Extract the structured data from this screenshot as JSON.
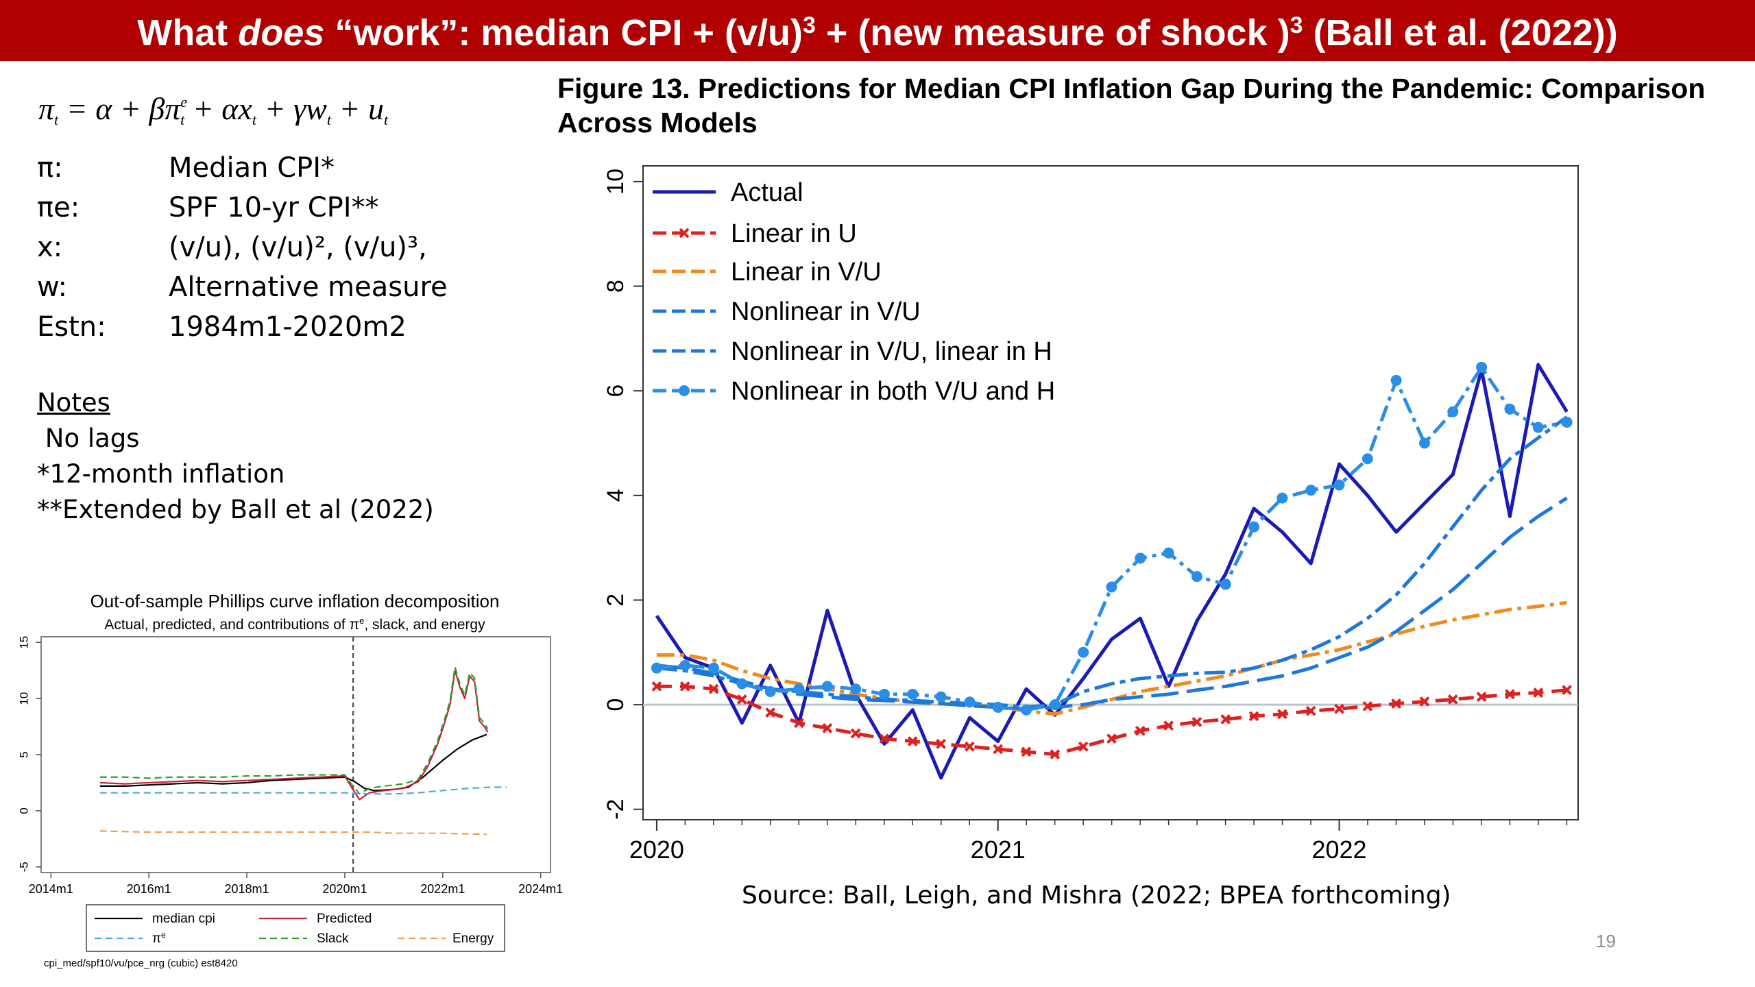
{
  "slide": {
    "title_parts": {
      "a": "What ",
      "b": "does",
      "c": " “work”: median CPI + (v/u)",
      "d": "3",
      "e": " + (new measure of shock )",
      "f": "3",
      "g": " (Ball et al. (2022))"
    },
    "page_number": "19"
  },
  "equation": {
    "lhs": "π",
    "lhs_sub": "t",
    "rhs1": " = α + βπ",
    "rhs1_sup": "e",
    "rhs1_sub": "t",
    "rhs2": " + αx",
    "rhs2_sub": "t",
    "rhs3": " + γw",
    "rhs3_sub": "t",
    "rhs4": " + u",
    "rhs4_sub": "t"
  },
  "definitions": [
    {
      "symbol": "π:",
      "value": "Median CPI*"
    },
    {
      "symbol": "πe:",
      "value": "SPF 10-yr CPI**"
    },
    {
      "symbol": "x:",
      "value": "(v/u), (v/u)², (v/u)³,"
    },
    {
      "symbol": "w:",
      "value": "Alternative measure"
    },
    {
      "symbol": "Estn:",
      "value": " 1984m1-2020m2"
    }
  ],
  "notes": {
    "heading": "Notes",
    "lines": [
      " No lags",
      "*12-month inflation",
      "**Extended by Ball et al (2022)"
    ]
  },
  "source": "Source: Ball, Leigh, and Mishra (2022; BPEA forthcoming)",
  "colors": {
    "title_bg": "#b00000",
    "actual": "#1a1ab4",
    "linear_u": "#e02020",
    "linear_vu": "#f08a1e",
    "nonlinear": "#1e78dc",
    "zero_line": "#b8c4cc"
  },
  "chart_data": [
    {
      "type": "line",
      "title": "Figure 13. Predictions for Median CPI Inflation Gap During the Pandemic: Comparison Across Models",
      "xlabel": "",
      "ylabel": "",
      "x_ticks": [
        {
          "label": "2020",
          "value": 2020.0
        },
        {
          "label": "2021",
          "value": 2021.0
        },
        {
          "label": "2022",
          "value": 2022.0
        }
      ],
      "xlim": [
        2019.96,
        2022.7
      ],
      "y_ticks": [
        -2,
        0,
        2,
        4,
        6,
        8,
        10
      ],
      "ylim": [
        -2.2,
        10.3
      ],
      "legend_position": "top-left",
      "x": [
        2020.0,
        2020.083,
        2020.167,
        2020.25,
        2020.333,
        2020.417,
        2020.5,
        2020.583,
        2020.667,
        2020.75,
        2020.833,
        2020.917,
        2021.0,
        2021.083,
        2021.167,
        2021.25,
        2021.333,
        2021.417,
        2021.5,
        2021.583,
        2021.667,
        2021.75,
        2021.833,
        2021.917,
        2022.0,
        2022.083,
        2022.167,
        2022.25,
        2022.333,
        2022.417,
        2022.5,
        2022.583,
        2022.667
      ],
      "series": [
        {
          "name": "Actual",
          "style": "solid",
          "color": "#1a1ab4",
          "values": [
            1.7,
            0.9,
            0.7,
            -0.35,
            0.75,
            -0.35,
            1.8,
            0.2,
            -0.75,
            -0.1,
            -1.4,
            -0.25,
            -0.7,
            0.3,
            -0.2,
            0.5,
            1.25,
            1.65,
            0.35,
            1.6,
            2.5,
            3.75,
            3.3,
            2.7,
            4.6,
            4.0,
            3.3,
            3.85,
            4.4,
            6.4,
            3.6,
            6.5,
            5.6
          ]
        },
        {
          "name": "Linear in U",
          "style": "dash-x",
          "color": "#e02020",
          "values": [
            0.35,
            0.35,
            0.3,
            0.1,
            -0.15,
            -0.35,
            -0.45,
            -0.55,
            -0.65,
            -0.7,
            -0.75,
            -0.8,
            -0.85,
            -0.9,
            -0.95,
            -0.8,
            -0.65,
            -0.5,
            -0.4,
            -0.33,
            -0.28,
            -0.22,
            -0.18,
            -0.12,
            -0.08,
            -0.03,
            0.02,
            0.06,
            0.1,
            0.15,
            0.2,
            0.23,
            0.28
          ]
        },
        {
          "name": "Linear in V/U",
          "style": "dash-dot",
          "color": "#f08a1e",
          "values": [
            0.95,
            0.95,
            0.85,
            0.65,
            0.5,
            0.4,
            0.3,
            0.2,
            0.12,
            0.05,
            0.02,
            0.0,
            -0.05,
            -0.12,
            -0.18,
            -0.05,
            0.1,
            0.25,
            0.35,
            0.45,
            0.55,
            0.7,
            0.85,
            0.95,
            1.05,
            1.2,
            1.35,
            1.5,
            1.62,
            1.72,
            1.82,
            1.88,
            1.95
          ]
        },
        {
          "name": "Nonlinear in V/U",
          "style": "long-dash",
          "color": "#1e78dc",
          "values": [
            0.75,
            0.7,
            0.6,
            0.45,
            0.3,
            0.2,
            0.15,
            0.1,
            0.08,
            0.05,
            0.02,
            -0.02,
            -0.05,
            -0.08,
            -0.05,
            0.0,
            0.1,
            0.15,
            0.2,
            0.28,
            0.35,
            0.45,
            0.55,
            0.7,
            0.9,
            1.1,
            1.4,
            1.8,
            2.2,
            2.7,
            3.2,
            3.6,
            3.95
          ]
        },
        {
          "name": "Nonlinear in V/U, linear in H",
          "style": "dash-dot2",
          "color": "#1e78dc",
          "values": [
            0.7,
            0.65,
            0.55,
            0.4,
            0.3,
            0.25,
            0.2,
            0.15,
            0.1,
            0.08,
            0.05,
            0.02,
            0.0,
            -0.05,
            0.0,
            0.25,
            0.4,
            0.5,
            0.55,
            0.6,
            0.62,
            0.7,
            0.85,
            1.05,
            1.3,
            1.65,
            2.1,
            2.7,
            3.4,
            4.1,
            4.7,
            5.1,
            5.5
          ]
        },
        {
          "name": "Nonlinear in both V/U and H",
          "style": "dash-dot-marker",
          "color": "#2a8ee6",
          "values": [
            0.7,
            0.75,
            0.7,
            0.4,
            0.25,
            0.3,
            0.35,
            0.3,
            0.2,
            0.2,
            0.15,
            0.05,
            -0.05,
            -0.1,
            0.0,
            1.0,
            2.25,
            2.8,
            2.9,
            2.45,
            2.3,
            3.4,
            3.95,
            4.1,
            4.2,
            4.7,
            6.2,
            5.0,
            5.6,
            6.45,
            5.65,
            5.3,
            5.4
          ]
        }
      ]
    },
    {
      "type": "line",
      "title": "Out-of-sample Phillips curve inflation decomposition",
      "subtitle_parts": {
        "a": "Actual, predicted, and contributions of π",
        "b": "e",
        "c": ", slack, and energy"
      },
      "x_ticks": [
        {
          "label": "2014m1",
          "value": 2014.0
        },
        {
          "label": "2016m1",
          "value": 2016.0
        },
        {
          "label": "2018m1",
          "value": 2018.0
        },
        {
          "label": "2020m1",
          "value": 2020.0
        },
        {
          "label": "2022m1",
          "value": 2022.0
        },
        {
          "label": "2024m1",
          "value": 2024.0
        }
      ],
      "xlim": [
        2013.8,
        2024.2
      ],
      "y_ticks": [
        -5,
        0,
        5,
        10,
        15
      ],
      "ylim": [
        -5.5,
        15.5
      ],
      "vline": 2020.17,
      "legend_position": "bottom",
      "legend_entries": [
        {
          "label": "median cpi",
          "color": "#000000",
          "dash": "solid"
        },
        {
          "label": "Predicted",
          "color": "#c81e3c",
          "dash": "solid"
        },
        {
          "label": "π",
          "label_sup": "e",
          "color": "#4aa8e0",
          "dash": "dashed"
        },
        {
          "label": "Slack",
          "color": "#2ca02c",
          "dash": "dashed"
        },
        {
          "label": "Energy",
          "color": "#f0a050",
          "dash": "dashed"
        }
      ],
      "footnote": "cpi_med/spf10/vu/pce_nrg (cubic) est8420",
      "series": [
        {
          "name": "median cpi",
          "color": "#000000",
          "dash": "solid",
          "x": [
            2015.0,
            2015.5,
            2016.0,
            2016.5,
            2017.0,
            2017.5,
            2018.0,
            2018.5,
            2019.0,
            2019.5,
            2020.0,
            2020.2,
            2020.4,
            2020.6,
            2021.0,
            2021.3,
            2021.6,
            2022.0,
            2022.3,
            2022.6,
            2022.9
          ],
          "values": [
            2.2,
            2.2,
            2.3,
            2.4,
            2.5,
            2.4,
            2.5,
            2.7,
            2.8,
            2.9,
            3.0,
            2.6,
            2.0,
            1.8,
            1.9,
            2.1,
            3.0,
            4.5,
            5.5,
            6.3,
            6.8
          ]
        },
        {
          "name": "Predicted",
          "color": "#c81e3c",
          "dash": "solid",
          "x": [
            2015.0,
            2015.5,
            2016.0,
            2016.5,
            2017.0,
            2017.5,
            2018.0,
            2018.5,
            2019.0,
            2019.5,
            2020.0,
            2020.15,
            2020.3,
            2020.5,
            2020.8,
            2021.2,
            2021.5,
            2021.7,
            2021.9,
            2022.05,
            2022.15,
            2022.25,
            2022.35,
            2022.45,
            2022.55,
            2022.65,
            2022.75,
            2022.85,
            2022.92
          ],
          "values": [
            2.5,
            2.4,
            2.5,
            2.6,
            2.7,
            2.6,
            2.7,
            2.8,
            2.9,
            3.0,
            3.1,
            2.0,
            1.0,
            1.6,
            1.8,
            2.0,
            2.6,
            4.0,
            6.0,
            8.0,
            9.5,
            12.5,
            11.0,
            10.0,
            12.0,
            11.5,
            8.0,
            7.5,
            7.0
          ]
        },
        {
          "name": "Slack",
          "color": "#2ca02c",
          "dash": "dashed",
          "x": [
            2015.0,
            2015.5,
            2016.0,
            2016.5,
            2017.0,
            2017.5,
            2018.0,
            2018.5,
            2019.0,
            2019.5,
            2020.0,
            2020.15,
            2020.3,
            2020.5,
            2020.8,
            2021.2,
            2021.5,
            2021.7,
            2021.9,
            2022.05,
            2022.15,
            2022.25,
            2022.35,
            2022.45,
            2022.55,
            2022.65,
            2022.75,
            2022.85,
            2022.92
          ],
          "values": [
            3.0,
            3.0,
            2.9,
            3.0,
            3.0,
            3.0,
            3.1,
            3.1,
            3.2,
            3.2,
            3.2,
            2.3,
            1.5,
            2.0,
            2.2,
            2.4,
            2.8,
            4.3,
            6.3,
            8.3,
            9.8,
            12.8,
            11.3,
            10.3,
            12.3,
            11.8,
            8.3,
            7.8,
            7.3
          ]
        },
        {
          "name": "πe",
          "color": "#4aa8e0",
          "dash": "dashed",
          "x": [
            2015.0,
            2016.0,
            2017.0,
            2018.0,
            2019.0,
            2020.0,
            2020.5,
            2021.0,
            2021.5,
            2022.0,
            2022.5,
            2023.0,
            2023.3
          ],
          "values": [
            1.6,
            1.6,
            1.6,
            1.6,
            1.6,
            1.6,
            1.5,
            1.5,
            1.6,
            1.8,
            2.0,
            2.1,
            2.1
          ]
        },
        {
          "name": "Energy",
          "color": "#f0a050",
          "dash": "dashed",
          "x": [
            2015.0,
            2016.0,
            2017.0,
            2018.0,
            2019.0,
            2020.0,
            2020.5,
            2021.0,
            2022.0,
            2022.9
          ],
          "values": [
            -1.8,
            -1.9,
            -1.9,
            -1.9,
            -1.9,
            -1.9,
            -1.9,
            -2.0,
            -2.0,
            -2.1
          ]
        }
      ]
    }
  ]
}
